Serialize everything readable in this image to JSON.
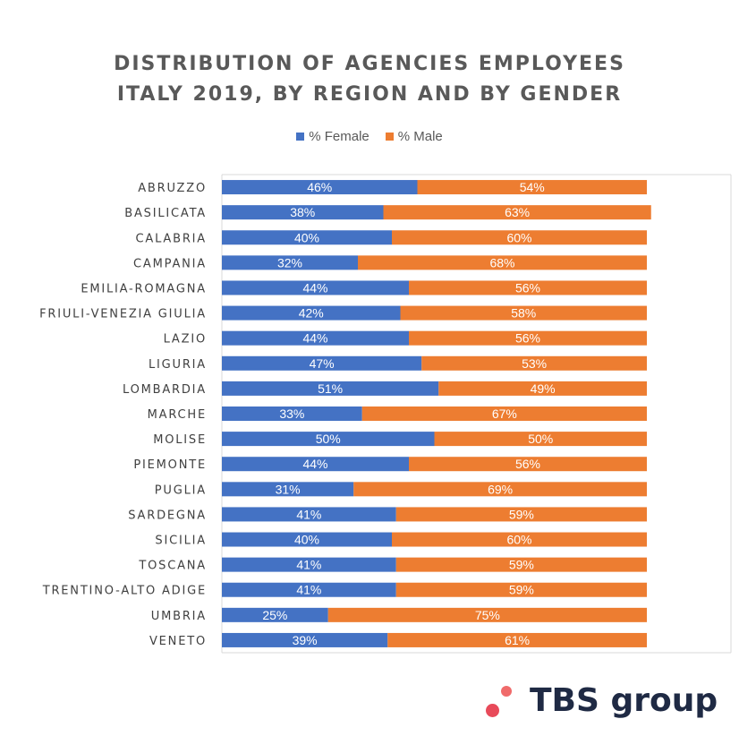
{
  "chart_data": {
    "type": "bar",
    "orientation": "horizontal-stacked-100",
    "title_line1": "DISTRIBUTION OF AGENCIES EMPLOYEES",
    "title_line2": "ITALY 2019, BY REGION AND BY GENDER",
    "categories": [
      "ABRUZZO",
      "BASILICATA",
      "CALABRIA",
      "CAMPANIA",
      "EMILIA-ROMAGNA",
      "FRIULI-VENEZIA GIULIA",
      "LAZIO",
      "LIGURIA",
      "LOMBARDIA",
      "MARCHE",
      "MOLISE",
      "PIEMONTE",
      "PUGLIA",
      "SARDEGNA",
      "SICILIA",
      "TOSCANA",
      "TRENTINO-ALTO ADIGE",
      "UMBRIA",
      "VENETO"
    ],
    "series": [
      {
        "name": "% Female",
        "color": "#4472c4",
        "values": [
          46,
          38,
          40,
          32,
          44,
          42,
          44,
          47,
          51,
          33,
          50,
          44,
          31,
          41,
          40,
          41,
          41,
          25,
          39
        ],
        "labels": [
          "46%",
          "38%",
          "40%",
          "32%",
          "44%",
          "42%",
          "44%",
          "47%",
          "51%",
          "33%",
          "50%",
          "44%",
          "31%",
          "41%",
          "40%",
          "41%",
          "41%",
          "25%",
          "39%"
        ]
      },
      {
        "name": "% Male",
        "color": "#ed7d31",
        "values": [
          54,
          63,
          60,
          68,
          56,
          58,
          56,
          53,
          49,
          67,
          50,
          56,
          69,
          59,
          60,
          59,
          59,
          75,
          61
        ],
        "labels": [
          "54%",
          "63%",
          "60%",
          "68%",
          "56%",
          "58%",
          "56%",
          "53%",
          "49%",
          "67%",
          "50%",
          "56%",
          "69%",
          "59%",
          "60%",
          "59%",
          "59%",
          "75%",
          "61%"
        ]
      }
    ],
    "legend_position": "top"
  },
  "logo": {
    "text": "TBS group",
    "dot_colors": [
      "#f06b6b",
      "#e84a5a"
    ]
  }
}
